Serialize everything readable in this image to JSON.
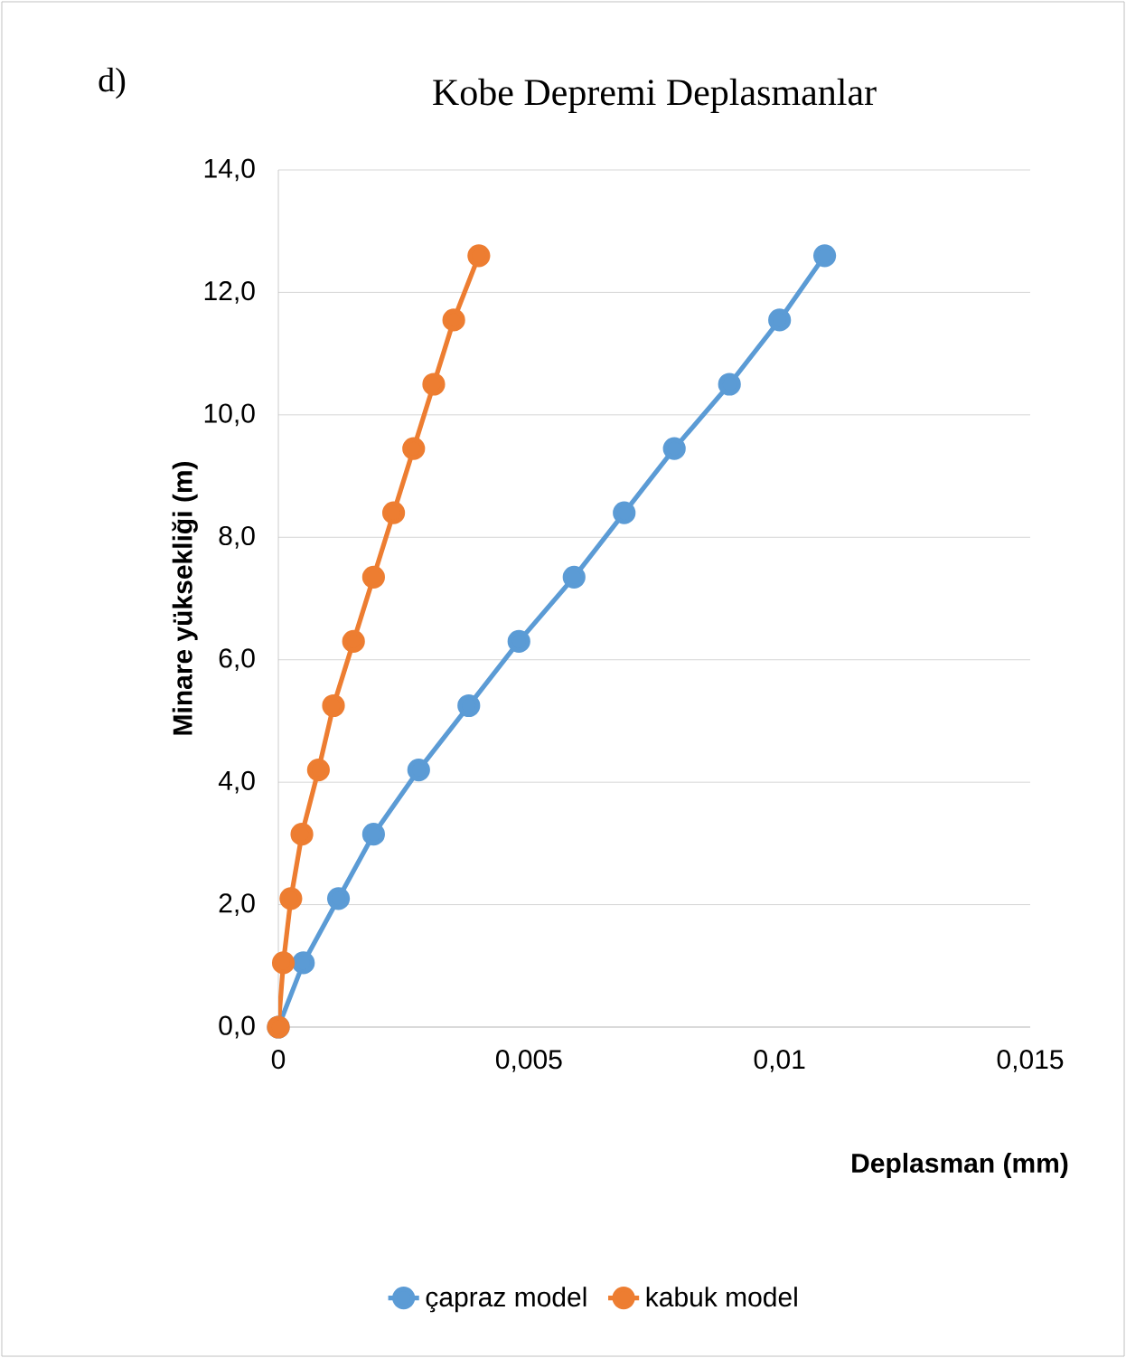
{
  "chart_data": {
    "type": "line",
    "title": "Kobe Depremi Deplasmanlar",
    "annotations": [
      "d)"
    ],
    "xlabel": "Deplasman (mm)",
    "ylabel": "Minare yüksekliği (m)",
    "xlim": [
      0,
      0.015
    ],
    "ylim": [
      0,
      14
    ],
    "xticks": [
      {
        "value": 0,
        "label": "0"
      },
      {
        "value": 0.005,
        "label": "0,005"
      },
      {
        "value": 0.01,
        "label": "0,01"
      },
      {
        "value": 0.015,
        "label": "0,015"
      }
    ],
    "yticks": [
      {
        "value": 0,
        "label": "0,0"
      },
      {
        "value": 2,
        "label": "2,0"
      },
      {
        "value": 4,
        "label": "4,0"
      },
      {
        "value": 6,
        "label": "6,0"
      },
      {
        "value": 8,
        "label": "8,0"
      },
      {
        "value": 10,
        "label": "10,0"
      },
      {
        "value": 12,
        "label": "12,0"
      },
      {
        "value": 14,
        "label": "14,0"
      }
    ],
    "grid": "y",
    "legend": "bottom",
    "marker": "circle",
    "line_style": "solid",
    "series": [
      {
        "name": "çapraz model",
        "color": "#5b9bd5",
        "x": [
          0,
          0.0005,
          0.0012,
          0.0019,
          0.0028,
          0.0038,
          0.0048,
          0.0059,
          0.0069,
          0.0079,
          0.009,
          0.01,
          0.0109
        ],
        "values": [
          0,
          1.05,
          2.1,
          3.15,
          4.2,
          5.25,
          6.3,
          7.35,
          8.4,
          9.45,
          10.5,
          11.55,
          12.6
        ]
      },
      {
        "name": "kabuk model",
        "color": "#ed7d31",
        "x": [
          0,
          0.0001,
          0.00025,
          0.00047,
          0.0008,
          0.0011,
          0.0015,
          0.0019,
          0.0023,
          0.0027,
          0.0031,
          0.0035,
          0.004
        ],
        "values": [
          0,
          1.05,
          2.1,
          3.15,
          4.2,
          5.25,
          6.3,
          7.35,
          8.4,
          9.45,
          10.5,
          11.55,
          12.6
        ]
      }
    ]
  }
}
